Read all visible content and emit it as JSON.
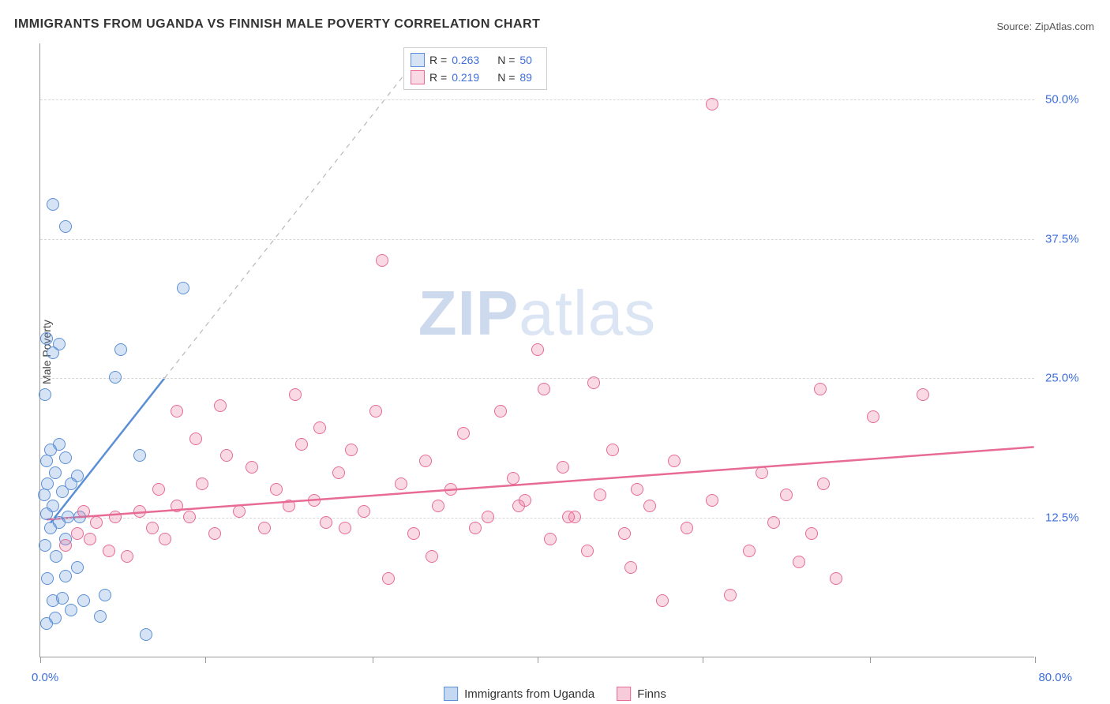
{
  "title": "IMMIGRANTS FROM UGANDA VS FINNISH MALE POVERTY CORRELATION CHART",
  "source_label": "Source: ",
  "source_value": "ZipAtlas.com",
  "y_axis_label": "Male Poverty",
  "watermark_bold": "ZIP",
  "watermark_light": "atlas",
  "chart": {
    "type": "scatter",
    "background_color": "#ffffff",
    "grid_color": "#d8d8d8",
    "axis_color": "#999999",
    "tick_label_color": "#3f6fdc",
    "tick_label_fontsize": 15,
    "title_fontsize": 16,
    "xlim": [
      0,
      80
    ],
    "ylim": [
      0,
      55
    ],
    "x_origin_label": "0.0%",
    "x_max_label": "80.0%",
    "y_ticks": [
      {
        "value": 12.5,
        "label": "12.5%"
      },
      {
        "value": 25.0,
        "label": "25.0%"
      },
      {
        "value": 37.5,
        "label": "37.5%"
      },
      {
        "value": 50.0,
        "label": "50.0%"
      }
    ],
    "x_tick_positions": [
      0,
      13.3,
      26.7,
      40,
      53.3,
      66.7,
      80
    ],
    "marker_radius": 8,
    "marker_border_width": 1,
    "marker_fill_opacity": 0.25,
    "series": [
      {
        "name": "Immigrants from Uganda",
        "color": "#5a8fd6",
        "fill": "rgba(90,143,214,0.25)",
        "r_value": "0.263",
        "n_value": "50",
        "trend": {
          "x1": 0.8,
          "y1": 12.0,
          "x2": 10.0,
          "y2": 25.0,
          "dash_x2": 31.0,
          "dash_y2": 54.6,
          "width": 2.5
        },
        "points": [
          [
            0.5,
            3.0
          ],
          [
            1.2,
            3.5
          ],
          [
            4.8,
            3.6
          ],
          [
            2.5,
            4.2
          ],
          [
            8.5,
            2.0
          ],
          [
            1.0,
            5.0
          ],
          [
            1.8,
            5.2
          ],
          [
            3.5,
            5.0
          ],
          [
            5.2,
            5.5
          ],
          [
            0.6,
            7.0
          ],
          [
            2.0,
            7.2
          ],
          [
            3.0,
            8.0
          ],
          [
            1.3,
            9.0
          ],
          [
            0.4,
            10.0
          ],
          [
            2.0,
            10.5
          ],
          [
            0.8,
            11.5
          ],
          [
            1.5,
            12.0
          ],
          [
            0.5,
            12.8
          ],
          [
            2.2,
            12.5
          ],
          [
            3.2,
            12.5
          ],
          [
            1.0,
            13.5
          ],
          [
            0.3,
            14.5
          ],
          [
            1.8,
            14.8
          ],
          [
            0.6,
            15.5
          ],
          [
            2.5,
            15.5
          ],
          [
            1.2,
            16.5
          ],
          [
            3.0,
            16.2
          ],
          [
            0.5,
            17.5
          ],
          [
            2.0,
            17.8
          ],
          [
            0.8,
            18.5
          ],
          [
            1.5,
            19.0
          ],
          [
            8.0,
            18.0
          ],
          [
            0.4,
            23.5
          ],
          [
            6.0,
            25.0
          ],
          [
            6.5,
            27.5
          ],
          [
            1.0,
            27.2
          ],
          [
            1.5,
            28.0
          ],
          [
            0.5,
            28.5
          ],
          [
            11.5,
            33.0
          ],
          [
            2.0,
            38.5
          ],
          [
            1.0,
            40.5
          ]
        ]
      },
      {
        "name": "Finns",
        "color": "#e76b94",
        "fill": "rgba(231,107,148,0.25)",
        "r_value": "0.219",
        "n_value": "89",
        "trend": {
          "x1": 0.5,
          "y1": 12.3,
          "x2": 80.0,
          "y2": 18.8,
          "width": 2.5
        },
        "points": [
          [
            2.0,
            10.0
          ],
          [
            3.0,
            11.0
          ],
          [
            4.0,
            10.5
          ],
          [
            5.5,
            9.5
          ],
          [
            4.5,
            12.0
          ],
          [
            6.0,
            12.5
          ],
          [
            3.5,
            13.0
          ],
          [
            7.0,
            9.0
          ],
          [
            8.0,
            13.0
          ],
          [
            9.0,
            11.5
          ],
          [
            10.0,
            10.5
          ],
          [
            11.0,
            13.5
          ],
          [
            9.5,
            15.0
          ],
          [
            11.0,
            22.0
          ],
          [
            12.0,
            12.5
          ],
          [
            13.0,
            15.5
          ],
          [
            14.0,
            11.0
          ],
          [
            15.0,
            18.0
          ],
          [
            12.5,
            19.5
          ],
          [
            16.0,
            13.0
          ],
          [
            17.0,
            17.0
          ],
          [
            14.5,
            22.5
          ],
          [
            18.0,
            11.5
          ],
          [
            19.0,
            15.0
          ],
          [
            20.0,
            13.5
          ],
          [
            21.0,
            19.0
          ],
          [
            24.5,
            11.5
          ],
          [
            22.0,
            14.0
          ],
          [
            23.0,
            12.0
          ],
          [
            24.0,
            16.5
          ],
          [
            25.0,
            18.5
          ],
          [
            22.5,
            20.5
          ],
          [
            26.0,
            13.0
          ],
          [
            27.0,
            22.0
          ],
          [
            28.0,
            7.0
          ],
          [
            29.0,
            15.5
          ],
          [
            30.0,
            11.0
          ],
          [
            20.5,
            23.5
          ],
          [
            31.0,
            17.5
          ],
          [
            32.0,
            13.5
          ],
          [
            27.5,
            35.5
          ],
          [
            33.0,
            15.0
          ],
          [
            34.0,
            20.0
          ],
          [
            35.0,
            11.5
          ],
          [
            36.0,
            12.5
          ],
          [
            37.0,
            22.0
          ],
          [
            38.0,
            16.0
          ],
          [
            31.5,
            9.0
          ],
          [
            39.0,
            14.0
          ],
          [
            40.0,
            27.5
          ],
          [
            38.5,
            13.5
          ],
          [
            41.0,
            10.5
          ],
          [
            42.0,
            17.0
          ],
          [
            43.0,
            12.5
          ],
          [
            44.0,
            9.5
          ],
          [
            40.5,
            24.0
          ],
          [
            44.5,
            24.5
          ],
          [
            45.0,
            14.5
          ],
          [
            46.0,
            18.5
          ],
          [
            47.0,
            11.0
          ],
          [
            48.0,
            15.0
          ],
          [
            42.5,
            12.5
          ],
          [
            49.0,
            13.5
          ],
          [
            50.0,
            5.0
          ],
          [
            51.0,
            17.5
          ],
          [
            52.0,
            11.5
          ],
          [
            47.5,
            8.0
          ],
          [
            54.0,
            14.0
          ],
          [
            55.5,
            5.5
          ],
          [
            57.0,
            9.5
          ],
          [
            62.7,
            24.0
          ],
          [
            58.0,
            16.5
          ],
          [
            59.0,
            12.0
          ],
          [
            67.0,
            21.5
          ],
          [
            60.0,
            14.5
          ],
          [
            61.0,
            8.5
          ],
          [
            71.0,
            23.5
          ],
          [
            54.0,
            49.5
          ],
          [
            62.0,
            11.0
          ],
          [
            63.0,
            15.5
          ],
          [
            64.0,
            7.0
          ]
        ]
      }
    ]
  },
  "bottom_legend": [
    {
      "label": "Immigrants from Uganda",
      "color": "#5a8fd6",
      "fill": "rgba(90,143,214,0.35)"
    },
    {
      "label": "Finns",
      "color": "#e76b94",
      "fill": "rgba(231,107,148,0.35)"
    }
  ],
  "legend_top_labels": {
    "r": "R =",
    "n": "N ="
  }
}
